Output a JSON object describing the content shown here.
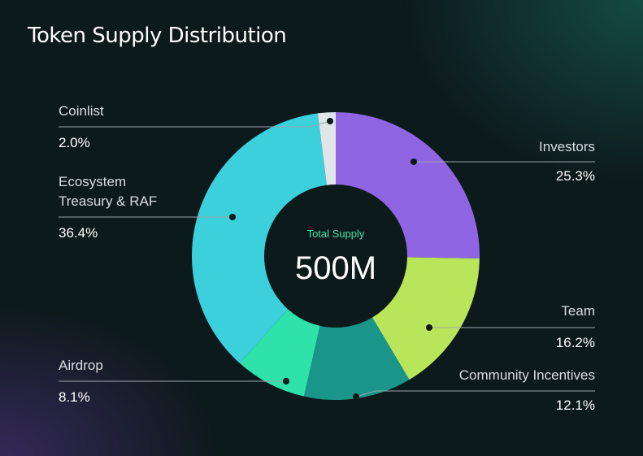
{
  "chart_data": {
    "type": "pie",
    "title": "Token Supply Distribution",
    "center_caption": "Total Supply",
    "center_total": "500M",
    "segments": [
      {
        "name": "Investors",
        "value": 25.3,
        "label": "25.3%",
        "color": "#9065e4"
      },
      {
        "name": "Team",
        "value": 16.2,
        "label": "16.2%",
        "color": "#b9e55a"
      },
      {
        "name": "Community Incentives",
        "value": 12.1,
        "label": "12.1%",
        "color": "#1a958a"
      },
      {
        "name": "Airdrop",
        "value": 8.1,
        "label": "8.1%",
        "color": "#2ee2aa"
      },
      {
        "name": "Ecosystem\nTreasury & RAF",
        "value": 36.4,
        "label": "36.4%",
        "color": "#3ccfdc"
      },
      {
        "name": "Coinlist",
        "value": 2.0,
        "label": "2.0%",
        "color": "#dfe5e8"
      }
    ],
    "legend": "callouts"
  }
}
